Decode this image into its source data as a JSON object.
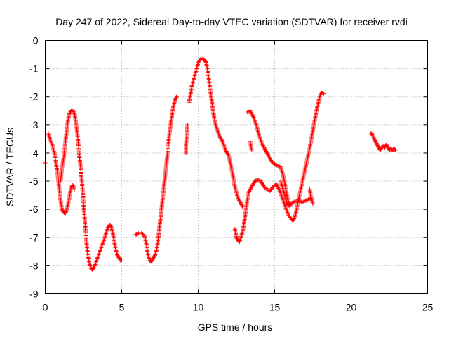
{
  "chart_data": {
    "type": "scatter",
    "title": "Day 247 of 2022, Sidereal Day-to-day VTEC variation (SDTVAR) for receiver rvdi",
    "xlabel": "GPS time / hours",
    "ylabel": "SDTVAR / TECUs",
    "xlim": [
      0,
      25
    ],
    "ylim": [
      -9,
      0
    ],
    "xticks": [
      0,
      5,
      10,
      15,
      20,
      25
    ],
    "yticks": [
      0,
      -1,
      -2,
      -3,
      -4,
      -5,
      -6,
      -7,
      -8,
      -9
    ],
    "xtick_labels": [
      "0",
      "5",
      "10",
      "15",
      "20",
      "25"
    ],
    "ytick_labels": [
      "0",
      "-1",
      "-2",
      "-3",
      "-4",
      "-5",
      "-6",
      "-7",
      "-8",
      "-9"
    ],
    "grid": true,
    "legend": "none",
    "marker": "+",
    "color": "#ff0000",
    "series": [
      {
        "x": [
          0.0
        ],
        "y": [
          -4.35
        ]
      },
      {
        "x": [
          0.2,
          0.3,
          0.45,
          0.6,
          0.8,
          0.9,
          1.0,
          1.1,
          1.2,
          1.3,
          1.4,
          1.5,
          1.6,
          1.7,
          1.8,
          1.85,
          1.9
        ],
        "y": [
          -3.3,
          -3.5,
          -3.7,
          -4.0,
          -4.7,
          -5.2,
          -5.7,
          -6.0,
          -6.1,
          -6.15,
          -6.05,
          -5.8,
          -5.5,
          -5.2,
          -5.15,
          -5.2,
          -5.3
        ]
      },
      {
        "x": [
          1.0,
          1.1,
          1.2,
          1.3,
          1.4,
          1.5,
          1.6,
          1.7,
          1.8,
          1.9,
          2.0,
          2.1,
          2.2,
          2.4,
          2.6,
          2.7,
          2.8,
          2.9,
          3.0,
          3.1,
          3.2,
          3.3,
          3.5,
          3.7,
          3.9,
          4.0,
          4.1,
          4.2,
          4.3,
          4.4,
          4.5,
          4.6,
          4.7,
          4.8,
          4.9,
          5.0
        ],
        "y": [
          -5.0,
          -4.5,
          -4.2,
          -3.7,
          -3.2,
          -2.8,
          -2.55,
          -2.5,
          -2.5,
          -2.55,
          -2.9,
          -3.3,
          -3.9,
          -5.0,
          -6.5,
          -7.2,
          -7.7,
          -7.95,
          -8.1,
          -8.15,
          -8.05,
          -7.9,
          -7.6,
          -7.3,
          -7.0,
          -6.8,
          -6.65,
          -6.55,
          -6.6,
          -6.8,
          -7.1,
          -7.4,
          -7.6,
          -7.7,
          -7.8,
          -7.8
        ]
      },
      {
        "x": [
          5.9,
          6.1,
          6.3,
          6.5,
          6.6,
          6.7,
          6.8,
          6.9,
          7.0,
          7.1,
          7.2,
          7.3,
          7.4,
          7.5,
          7.6,
          7.7,
          7.8,
          7.9,
          8.0,
          8.1,
          8.2,
          8.3,
          8.4,
          8.5,
          8.6
        ],
        "y": [
          -6.9,
          -6.85,
          -6.85,
          -6.95,
          -7.2,
          -7.55,
          -7.8,
          -7.85,
          -7.8,
          -7.7,
          -7.6,
          -7.4,
          -7.0,
          -6.5,
          -6.0,
          -5.5,
          -5.0,
          -4.5,
          -4.0,
          -3.4,
          -3.0,
          -2.6,
          -2.3,
          -2.1,
          -2.0
        ]
      },
      {
        "x": [
          9.2,
          9.2,
          9.25,
          9.3
        ],
        "y": [
          -4.0,
          -3.7,
          -3.4,
          -3.0
        ]
      },
      {
        "x": [
          9.4,
          9.5,
          9.6,
          9.7,
          9.8,
          9.9,
          10.0,
          10.1,
          10.2,
          10.3,
          10.4,
          10.5,
          10.6,
          10.7,
          10.8,
          10.9,
          11.0,
          11.1,
          11.2,
          11.4,
          11.6,
          11.8,
          12.0,
          12.2,
          12.4,
          12.6,
          12.8,
          12.9
        ],
        "y": [
          -2.2,
          -1.9,
          -1.6,
          -1.4,
          -1.2,
          -1.0,
          -0.8,
          -0.7,
          -0.65,
          -0.65,
          -0.7,
          -0.75,
          -1.0,
          -1.4,
          -1.8,
          -2.2,
          -2.6,
          -2.9,
          -3.1,
          -3.4,
          -3.6,
          -3.9,
          -4.1,
          -4.6,
          -5.2,
          -5.6,
          -5.8,
          -5.9
        ]
      },
      {
        "x": [
          12.4,
          12.45,
          12.5,
          12.6,
          12.7,
          12.8,
          12.9,
          13.0,
          13.1,
          13.2,
          13.3,
          13.5,
          13.7,
          13.9,
          14.1,
          14.3,
          14.5,
          14.7,
          14.9,
          15.1,
          15.3,
          15.5,
          15.7,
          15.9,
          16.1,
          16.2,
          16.3,
          16.4,
          16.5,
          16.7,
          16.9,
          17.1,
          17.3,
          17.5,
          17.7,
          17.9,
          18.0,
          18.1,
          18.2
        ],
        "y": [
          -6.7,
          -6.85,
          -7.0,
          -7.1,
          -7.15,
          -7.0,
          -6.8,
          -6.5,
          -6.1,
          -5.7,
          -5.4,
          -5.2,
          -5.0,
          -4.95,
          -5.0,
          -5.2,
          -5.3,
          -5.35,
          -5.2,
          -5.1,
          -5.3,
          -5.6,
          -5.9,
          -6.2,
          -6.35,
          -6.4,
          -6.3,
          -6.1,
          -5.8,
          -5.3,
          -4.8,
          -4.3,
          -3.8,
          -3.2,
          -2.6,
          -2.1,
          -1.9,
          -1.85,
          -1.9
        ]
      },
      {
        "x": [
          13.2,
          13.4,
          13.6,
          13.8,
          14.0,
          14.2,
          14.4,
          14.6,
          14.8,
          15.0,
          15.2,
          15.4,
          15.6,
          15.7,
          15.8,
          15.9,
          16.0,
          16.2,
          16.4,
          16.6,
          16.8,
          17.0,
          17.2,
          17.4
        ],
        "y": [
          -2.55,
          -2.5,
          -2.7,
          -3.0,
          -3.4,
          -3.7,
          -3.9,
          -4.1,
          -4.3,
          -4.4,
          -4.45,
          -4.5,
          -4.9,
          -5.2,
          -5.5,
          -5.75,
          -5.85,
          -5.75,
          -5.7,
          -5.7,
          -5.75,
          -5.7,
          -5.65,
          -5.6
        ]
      },
      {
        "x": [
          13.4,
          13.45,
          13.5
        ],
        "y": [
          -3.6,
          -3.75,
          -3.9
        ]
      },
      {
        "x": [
          15.4,
          15.5,
          15.6,
          15.7,
          15.8,
          16.0
        ],
        "y": [
          -5.0,
          -5.2,
          -5.4,
          -5.6,
          -5.8,
          -5.9
        ]
      },
      {
        "x": [
          17.3,
          17.35,
          17.4,
          17.45,
          17.5
        ],
        "y": [
          -5.3,
          -5.5,
          -5.6,
          -5.7,
          -5.8
        ]
      },
      {
        "x": [
          21.3,
          21.4,
          21.5,
          21.6,
          21.7,
          21.8,
          21.9,
          22.0,
          22.1,
          22.2,
          22.3,
          22.4,
          22.5,
          22.6,
          22.7,
          22.8,
          22.9
        ],
        "y": [
          -3.3,
          -3.35,
          -3.5,
          -3.6,
          -3.7,
          -3.8,
          -3.9,
          -3.8,
          -3.75,
          -3.8,
          -3.7,
          -3.8,
          -3.9,
          -3.85,
          -3.9,
          -3.85,
          -3.9
        ]
      }
    ]
  }
}
